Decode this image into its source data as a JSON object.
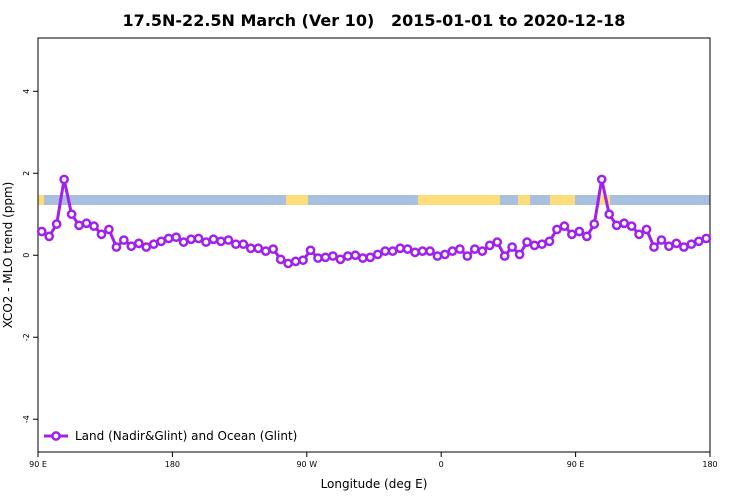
{
  "chart_data": {
    "type": "line",
    "title": "17.5N-22.5N March (Ver 10)   2015-01-01 to 2020-12-18",
    "xlabel": "Longitude (deg E)",
    "ylabel": "XCO2 - MLO trend (ppm)",
    "xlim": [
      90,
      540
    ],
    "ylim": [
      -4.8,
      5.3
    ],
    "xticks": [
      {
        "value": 90,
        "label": "90 E"
      },
      180,
      {
        "value": 270,
        "label": "90 W"
      },
      {
        "value": 360,
        "label": "0"
      },
      {
        "value": 450,
        "label": "90 E"
      },
      {
        "value": 540,
        "label": "180"
      }
    ],
    "yticks": [
      -4,
      -2,
      0,
      2,
      4
    ],
    "legend": "bottom-left",
    "x": [
      92.5,
      97.5,
      102.5,
      107.5,
      112.5,
      117.5,
      122.5,
      127.5,
      132.5,
      137.5,
      142.5,
      147.5,
      152.5,
      157.5,
      162.5,
      167.5,
      172.5,
      177.5,
      182.5,
      187.5,
      192.5,
      197.5,
      202.5,
      207.5,
      212.5,
      217.5,
      222.5,
      227.5,
      232.5,
      237.5,
      242.5,
      247.5,
      252.5,
      257.5,
      262.5,
      267.5,
      272.5,
      277.5,
      282.5,
      287.5,
      292.5,
      297.5,
      302.5,
      307.5,
      312.5,
      317.5,
      322.5,
      327.5,
      332.5,
      337.5,
      342.5,
      347.5,
      352.5,
      357.5,
      362.5,
      367.5,
      372.5,
      377.5,
      382.5,
      387.5,
      392.5,
      397.5,
      402.5,
      407.5,
      412.5,
      417.5,
      422.5,
      427.5,
      432.5,
      437.5,
      442.5,
      447.5,
      452.5,
      457.5,
      462.5,
      467.5,
      472.5,
      477.5,
      482.5,
      487.5,
      492.5,
      497.5,
      502.5,
      507.5,
      512.5,
      517.5,
      522.5,
      527.5,
      532.5,
      537.5
    ],
    "series": [
      {
        "name": "Land (Nadir&Glint) and Ocean (Glint)",
        "color": "#a020f0",
        "values": [
          0.58,
          0.46,
          0.76,
          1.85,
          1.0,
          0.73,
          0.78,
          0.71,
          0.51,
          0.63,
          0.2,
          0.37,
          0.22,
          0.29,
          0.2,
          0.27,
          0.34,
          0.41,
          0.44,
          0.32,
          0.39,
          0.41,
          0.32,
          0.39,
          0.34,
          0.37,
          0.27,
          0.27,
          0.17,
          0.17,
          0.1,
          0.15,
          -0.1,
          -0.2,
          -0.15,
          -0.12,
          0.12,
          -0.07,
          -0.05,
          -0.02,
          -0.1,
          -0.02,
          0,
          -0.07,
          -0.05,
          0.02,
          0.1,
          0.1,
          0.17,
          0.15,
          0.07,
          0.1,
          0.1,
          -0.02,
          0.02,
          0.1,
          0.15,
          -0.02,
          0.15,
          0.1,
          0.24,
          0.32,
          -0.02,
          0.2,
          0.02,
          0.32,
          0.24,
          0.27,
          0.34,
          0.63,
          0.71,
          0.51,
          0.58,
          0.46,
          0.76,
          1.85,
          1.0,
          0.73,
          0.78,
          0.71,
          0.51,
          0.63,
          0.2,
          0.37,
          0.22,
          0.29,
          0.2,
          0.27,
          0.34,
          0.41
        ]
      }
    ]
  }
}
